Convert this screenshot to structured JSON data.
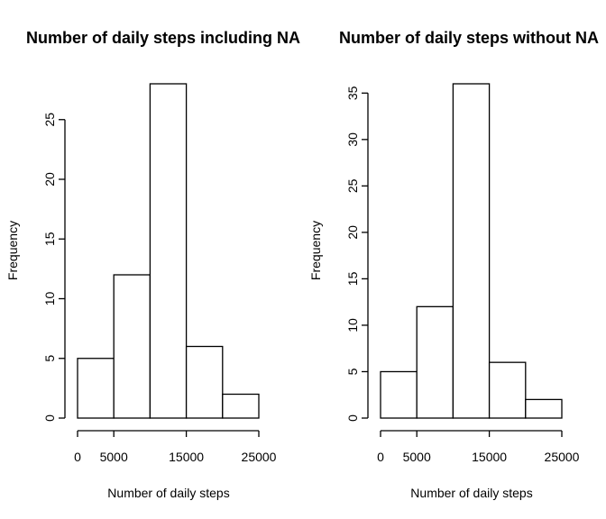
{
  "chart_data": [
    {
      "type": "bar",
      "title": "Number of daily steps including NA",
      "xlabel": "Number of daily steps",
      "ylabel": "Frequency",
      "bins": [
        [
          0,
          5000
        ],
        [
          5000,
          10000
        ],
        [
          10000,
          15000
        ],
        [
          15000,
          20000
        ],
        [
          20000,
          25000
        ]
      ],
      "values": [
        5,
        12,
        28,
        6,
        2
      ],
      "xticks": [
        0,
        5000,
        15000,
        25000
      ],
      "xtick_labels": [
        "0",
        "5000",
        "15000",
        "25000"
      ],
      "yticks": [
        0,
        5,
        10,
        15,
        20,
        25
      ],
      "ytick_labels": [
        "0",
        "5",
        "10",
        "15",
        "20",
        "25"
      ],
      "xlim": [
        0,
        25000
      ],
      "ylim": [
        0,
        28
      ],
      "grid": false
    },
    {
      "type": "bar",
      "title": "Number of daily steps without NA",
      "xlabel": "Number of daily steps",
      "ylabel": "Frequency",
      "bins": [
        [
          0,
          5000
        ],
        [
          5000,
          10000
        ],
        [
          10000,
          15000
        ],
        [
          15000,
          20000
        ],
        [
          20000,
          25000
        ]
      ],
      "values": [
        5,
        12,
        36,
        6,
        2
      ],
      "xticks": [
        0,
        5000,
        15000,
        25000
      ],
      "xtick_labels": [
        "0",
        "5000",
        "15000",
        "25000"
      ],
      "yticks": [
        0,
        5,
        10,
        15,
        20,
        25,
        30,
        35
      ],
      "ytick_labels": [
        "0",
        "5",
        "10",
        "15",
        "20",
        "25",
        "30",
        "35"
      ],
      "xlim": [
        0,
        25000
      ],
      "ylim": [
        0,
        36
      ],
      "grid": false
    }
  ]
}
